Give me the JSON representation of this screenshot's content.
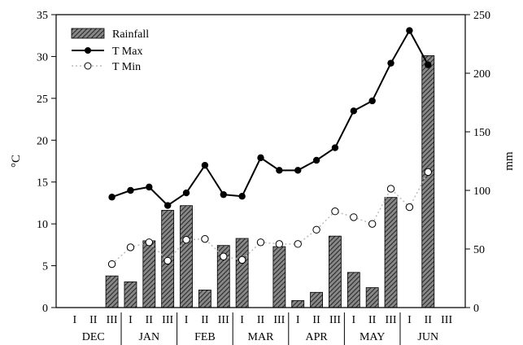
{
  "chart_data": {
    "type": "bar+line",
    "categories": [
      "I",
      "II",
      "III",
      "I",
      "II",
      "III",
      "I",
      "II",
      "III",
      "I",
      "II",
      "III",
      "I",
      "II",
      "III",
      "I",
      "II",
      "III",
      "I",
      "II",
      "III"
    ],
    "months": [
      "DEC",
      "JAN",
      "FEB",
      "MAR",
      "APR",
      "MAY",
      "JUN"
    ],
    "y_left": {
      "label": "°C",
      "lim": [
        0,
        35
      ],
      "ticks": [
        0,
        5,
        10,
        15,
        20,
        25,
        30,
        35
      ]
    },
    "y_right": {
      "label": "mm",
      "lim": [
        0,
        250
      ],
      "ticks": [
        0,
        50,
        100,
        150,
        200,
        250
      ]
    },
    "series": [
      {
        "name": "Rainfall",
        "kind": "bar",
        "axis": "right",
        "values": [
          null,
          null,
          27,
          22,
          57,
          83,
          87,
          15,
          53,
          59,
          null,
          52,
          6,
          13,
          61,
          30,
          17,
          94,
          null,
          215,
          null
        ]
      },
      {
        "name": "T Max",
        "kind": "line",
        "axis": "left",
        "values": [
          null,
          null,
          13.2,
          14.0,
          14.4,
          12.2,
          13.7,
          17.0,
          13.5,
          13.3,
          17.9,
          16.4,
          16.4,
          17.6,
          19.1,
          23.5,
          24.7,
          29.2,
          33.1,
          29.0,
          null
        ]
      },
      {
        "name": "T Min",
        "kind": "line",
        "axis": "left",
        "values": [
          null,
          null,
          5.2,
          7.2,
          7.8,
          5.6,
          8.1,
          8.2,
          6.1,
          5.7,
          7.8,
          7.6,
          7.6,
          9.3,
          11.5,
          10.8,
          10.0,
          14.2,
          12.0,
          16.2,
          null
        ]
      }
    ],
    "colors": {
      "bar_fill": "#555555",
      "bar_edge": "#000000",
      "tmax": "#000000",
      "tmin_line": "#bbbbbb"
    },
    "legend_position": "top-left",
    "grid": false
  }
}
